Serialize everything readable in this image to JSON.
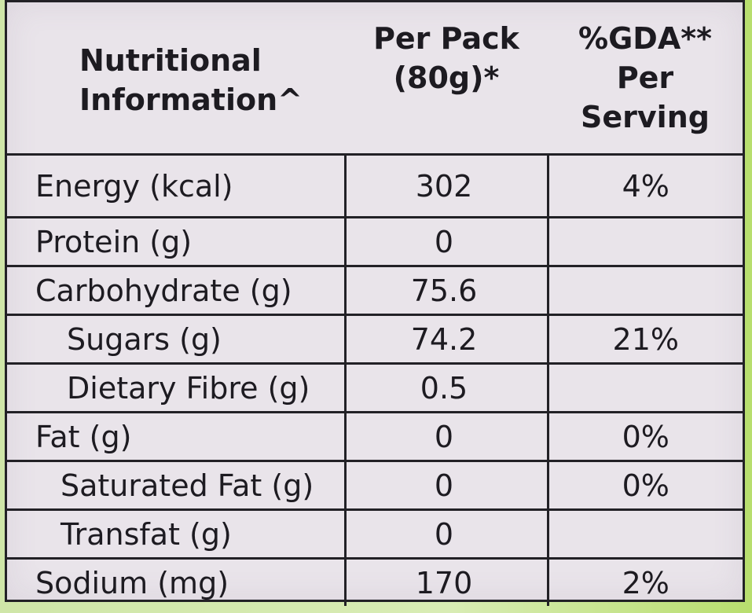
{
  "header": {
    "col1_line1": "Nutritional",
    "col1_line2": "Information^",
    "col2_line1": "Per Pack",
    "col2_line2": "(80g)*",
    "col3_line1": "%GDA**",
    "col3_line2": "Per",
    "col3_line3": "Serving"
  },
  "rows": [
    {
      "name": "Energy (kcal)",
      "value": "302",
      "gda": "4%"
    },
    {
      "name": "Protein (g)",
      "value": "0",
      "gda": ""
    },
    {
      "name": "Carbohydrate (g)",
      "value": "75.6",
      "gda": ""
    },
    {
      "name": "Sugars (g)",
      "value": "74.2",
      "gda": "21%"
    },
    {
      "name": "Dietary Fibre (g)",
      "value": "0.5",
      "gda": ""
    },
    {
      "name": "Fat (g)",
      "value": "0",
      "gda": "0%"
    },
    {
      "name": "Saturated Fat (g)",
      "value": "0",
      "gda": "0%"
    },
    {
      "name": "Transfat (g)",
      "value": "0",
      "gda": ""
    },
    {
      "name": "Sodium (mg)",
      "value": "170",
      "gda": "2%"
    }
  ],
  "colors": {
    "panel": "#e9e4ea",
    "ink": "#1d1b21",
    "border": "#222126",
    "background_green": "#cfe6a8"
  }
}
